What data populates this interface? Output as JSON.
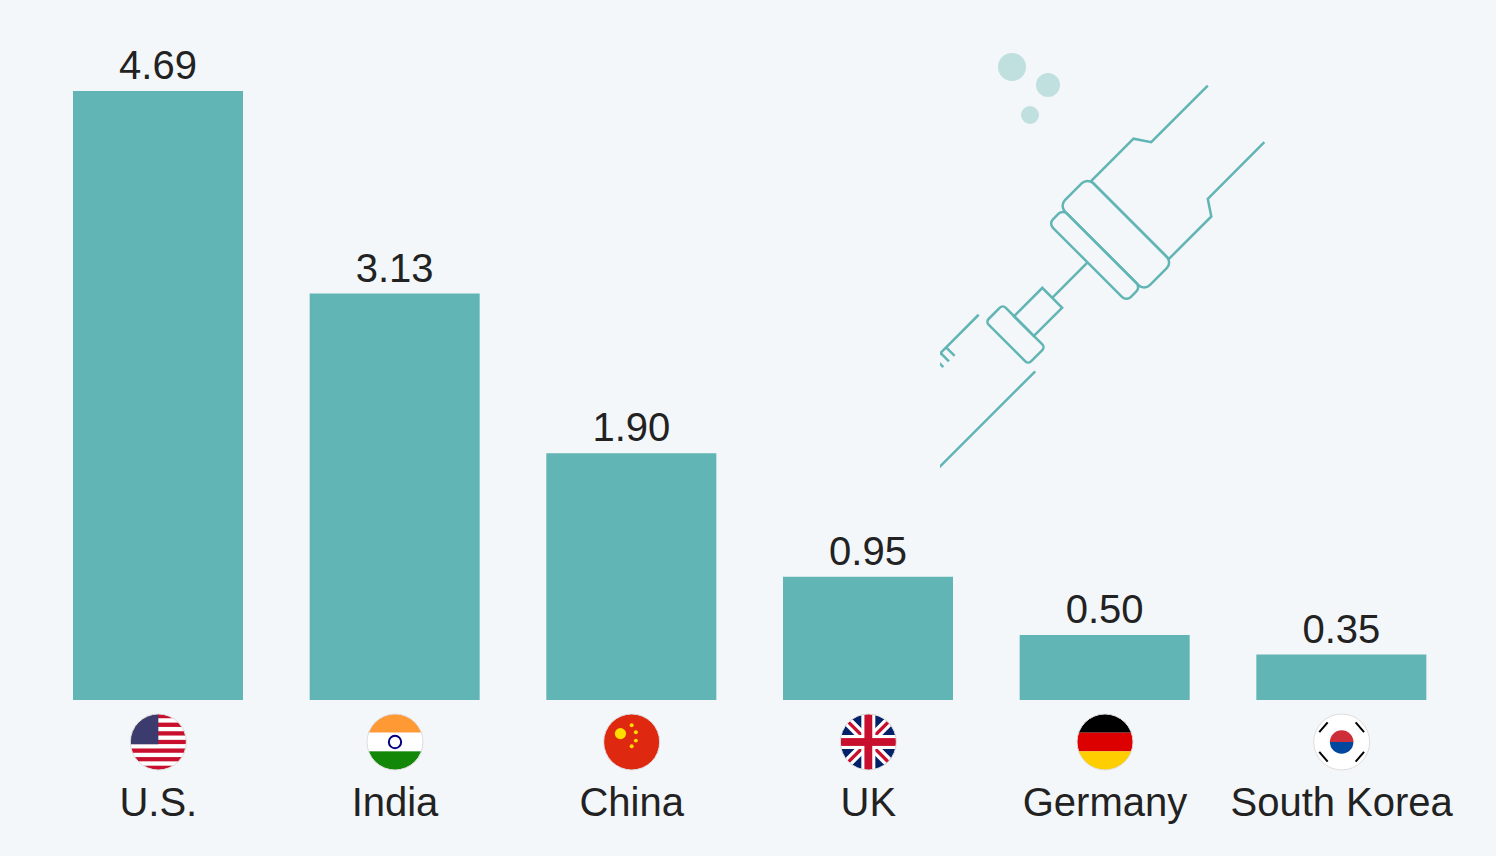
{
  "chart_data": {
    "type": "bar",
    "categories": [
      "U.S.",
      "India",
      "China",
      "UK",
      "Germany",
      "South Korea"
    ],
    "values": [
      4.69,
      3.13,
      1.9,
      0.95,
      0.5,
      0.35
    ],
    "value_labels": [
      "4.69",
      "3.13",
      "1.90",
      "0.95",
      "0.50",
      "0.35"
    ],
    "color": "#61b5b4",
    "ylim": [
      0,
      4.69
    ],
    "grid": false,
    "data_labels": true,
    "tick_labels": "x"
  }
}
